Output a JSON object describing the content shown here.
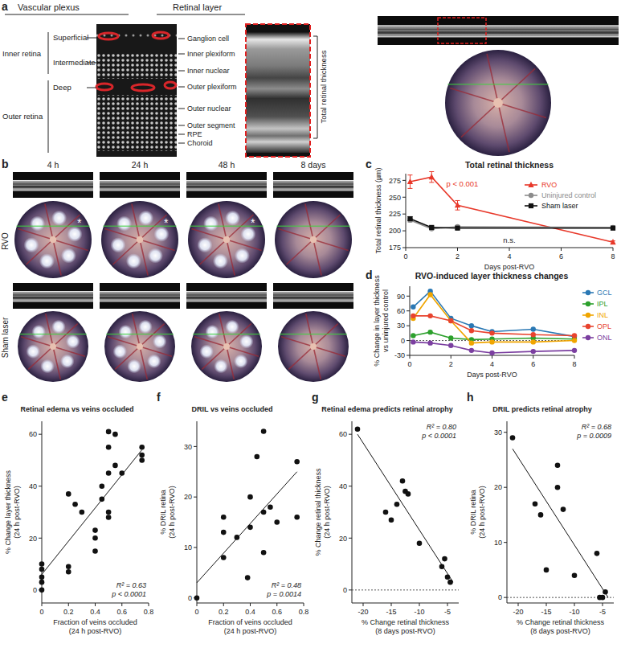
{
  "panel_a": {
    "panel_label": "a",
    "headers": [
      "Vascular plexus",
      "Retinal layer"
    ],
    "plexus_groups": [
      "Inner retina",
      "Outer retina"
    ],
    "plexus": [
      "Superficial",
      "Intermediate",
      "Deep"
    ],
    "layers": [
      "Ganglion cell",
      "Inner plexiform",
      "Inner nuclear",
      "Outer plexiform",
      "Outer nuclear",
      "Outer segment",
      "RPE",
      "Choroid"
    ],
    "thickness_label": "Total retinal thickness"
  },
  "panel_b": {
    "panel_label": "b",
    "timepoints": [
      "4 h",
      "24 h",
      "48 h",
      "8 days"
    ],
    "rows": [
      "RVO",
      "Sham laser"
    ],
    "marker_asterisk": "*"
  },
  "chart_data": [
    {
      "type": "line",
      "panel_label": "c",
      "title": "Total retinal thickness",
      "xlabel": "Days post-RVO",
      "ylabel": "Total retinal thickness (µm)",
      "x": [
        0.17,
        1,
        2,
        8
      ],
      "xlim": [
        0,
        8
      ],
      "xticks": [
        0,
        2,
        4,
        6,
        8
      ],
      "ylim": [
        175,
        285
      ],
      "yticks": [
        175,
        200,
        225,
        250,
        275
      ],
      "legend": "upper right",
      "annotations": [
        "p < 0.001",
        "n.s."
      ],
      "series": [
        {
          "name": "RVO",
          "color": "#e8382a",
          "marker": "triangle",
          "values": [
            273,
            280,
            238,
            183
          ],
          "errors": [
            10,
            8,
            7,
            2
          ]
        },
        {
          "name": "Uninjured control",
          "color": "#8c8c8c",
          "marker": "circle",
          "values": [
            216,
            203,
            206,
            205
          ],
          "errors": [
            3,
            2,
            2,
            2
          ]
        },
        {
          "name": "Sham laser",
          "color": "#111111",
          "marker": "square",
          "values": [
            218,
            205,
            204,
            204
          ],
          "errors": [
            3,
            2,
            2,
            2
          ]
        }
      ]
    },
    {
      "type": "line",
      "panel_label": "d",
      "title": "RVO-induced layer thickness changes",
      "xlabel": "Days post-RVO",
      "ylabel": [
        "% Change in layer thickness",
        "vs uninjured control"
      ],
      "x": [
        0.17,
        1,
        2,
        3,
        4,
        6,
        8
      ],
      "xlim": [
        0,
        8
      ],
      "xticks": [
        0,
        2,
        4,
        6,
        8
      ],
      "ylim": [
        -30,
        110
      ],
      "yticks": [
        -30,
        0,
        30,
        60,
        90
      ],
      "reference_y": 0,
      "legend": "right",
      "series": [
        {
          "name": "GCL",
          "color": "#2a78b4",
          "marker": "circle",
          "values": [
            68,
            100,
            45,
            30,
            18,
            23,
            8
          ]
        },
        {
          "name": "IPL",
          "color": "#2ca02c",
          "marker": "circle",
          "values": [
            10,
            17,
            5,
            2,
            3,
            5,
            3
          ]
        },
        {
          "name": "INL",
          "color": "#f0a500",
          "marker": "circle",
          "values": [
            45,
            93,
            40,
            -5,
            -3,
            -3,
            0
          ]
        },
        {
          "name": "OPL",
          "color": "#e8432e",
          "marker": "circle",
          "values": [
            50,
            50,
            40,
            20,
            15,
            12,
            10
          ]
        },
        {
          "name": "ONL",
          "color": "#7b3fa0",
          "marker": "circle",
          "values": [
            -3,
            -5,
            -10,
            -20,
            -25,
            -22,
            -20
          ]
        }
      ]
    },
    {
      "type": "scatter",
      "panel_label": "e",
      "title": "Retinal edema vs veins occluded",
      "xlabel": [
        "Fraction of veins occluded",
        "(24 h post-RVO)"
      ],
      "ylabel": [
        "% Change layer thickness",
        "(24 h post-RVO)"
      ],
      "color": "#111111",
      "xlim": [
        0,
        0.8
      ],
      "xticks": [
        0,
        0.2,
        0.4,
        0.6,
        0.8
      ],
      "ylim": [
        -5,
        65
      ],
      "yticks": [
        0,
        20,
        40,
        60
      ],
      "x": [
        0,
        0,
        0,
        0,
        0,
        0.2,
        0.2,
        0.2,
        0.25,
        0.3,
        0.4,
        0.4,
        0.4,
        0.45,
        0.45,
        0.5,
        0.5,
        0.5,
        0.5,
        0.5,
        0.55,
        0.55,
        0.6,
        0.75,
        0.75,
        0.75
      ],
      "values": [
        0,
        3,
        5,
        8,
        10,
        7,
        9,
        37,
        33,
        30,
        15,
        20,
        23,
        35,
        40,
        45,
        55,
        61,
        30,
        28,
        48,
        60,
        45,
        50,
        55,
        52
      ],
      "fit": {
        "x": [
          0,
          0.75
        ],
        "y": [
          6,
          54
        ]
      },
      "annotations": [
        "R² = 0.63",
        "p < 0.0001"
      ]
    },
    {
      "type": "scatter",
      "panel_label": "f",
      "title": "DRIL vs veins occluded",
      "xlabel": [
        "Fraction of veins occluded",
        "(24 h post-RVO)"
      ],
      "ylabel": [
        "% DRIL retina",
        "(24 h post-RVO)"
      ],
      "color": "#111111",
      "xlim": [
        0,
        0.8
      ],
      "xticks": [
        0,
        0.2,
        0.4,
        0.6,
        0.8
      ],
      "ylim": [
        -1,
        35
      ],
      "yticks": [
        0,
        10,
        20,
        30
      ],
      "x": [
        0,
        0.2,
        0.2,
        0.2,
        0.3,
        0.38,
        0.4,
        0.4,
        0.45,
        0.5,
        0.5,
        0.5,
        0.55,
        0.6,
        0.75,
        0.75
      ],
      "values": [
        0,
        8,
        13,
        16,
        12,
        4,
        14,
        20,
        28,
        33,
        17,
        9,
        18,
        15,
        27,
        16
      ],
      "fit": {
        "x": [
          0,
          0.75
        ],
        "y": [
          3,
          25
        ]
      },
      "annotations": [
        "R² = 0.48",
        "p = 0.0014"
      ]
    },
    {
      "type": "scatter",
      "panel_label": "g",
      "title": "Retinal edema predicts retinal atrophy",
      "xlabel": [
        "% Change retinal thickness",
        "(8 days post-RVO)"
      ],
      "ylabel": [
        "% Change retinal thickness",
        "(24 h post-RVO)"
      ],
      "color": "#111111",
      "xlim": [
        -22,
        -3
      ],
      "xticks": [
        -20,
        -15,
        -10,
        -5
      ],
      "ylim": [
        -5,
        65
      ],
      "yticks": [
        0,
        20,
        40,
        60
      ],
      "reference_y": 0,
      "x": [
        -21,
        -16,
        -15,
        -14,
        -13,
        -12.5,
        -12,
        -10,
        -6,
        -5.5,
        -5,
        -4.5
      ],
      "values": [
        62,
        30,
        27,
        33,
        42,
        38,
        37,
        18,
        9,
        12,
        5,
        3
      ],
      "fit": {
        "x": [
          -21,
          -4
        ],
        "y": [
          60,
          3
        ]
      },
      "annotations": [
        "R² = 0.80",
        "p < 0.0001"
      ]
    },
    {
      "type": "scatter",
      "panel_label": "h",
      "title": "DRIL predicts retinal atrophy",
      "xlabel": [
        "% Change retinal thickness",
        "(8 days post-RVO)"
      ],
      "ylabel": [
        "% DRIL retina",
        "(24 h post-RVO)"
      ],
      "color": "#111111",
      "xlim": [
        -22,
        -3
      ],
      "xticks": [
        -20,
        -15,
        -10,
        -5
      ],
      "ylim": [
        -1,
        32
      ],
      "yticks": [
        0,
        10,
        20,
        30
      ],
      "reference_y": 0,
      "x": [
        -21,
        -17,
        -16,
        -15,
        -13,
        -13,
        -12,
        -10,
        -6,
        -5.5,
        -5,
        -4.5
      ],
      "values": [
        29,
        17,
        15,
        5,
        24,
        20,
        16,
        4,
        8,
        0,
        0,
        1
      ],
      "fit": {
        "x": [
          -21,
          -4
        ],
        "y": [
          27,
          0
        ]
      },
      "annotations": [
        "R² = 0.68",
        "p = 0.0009"
      ]
    }
  ]
}
